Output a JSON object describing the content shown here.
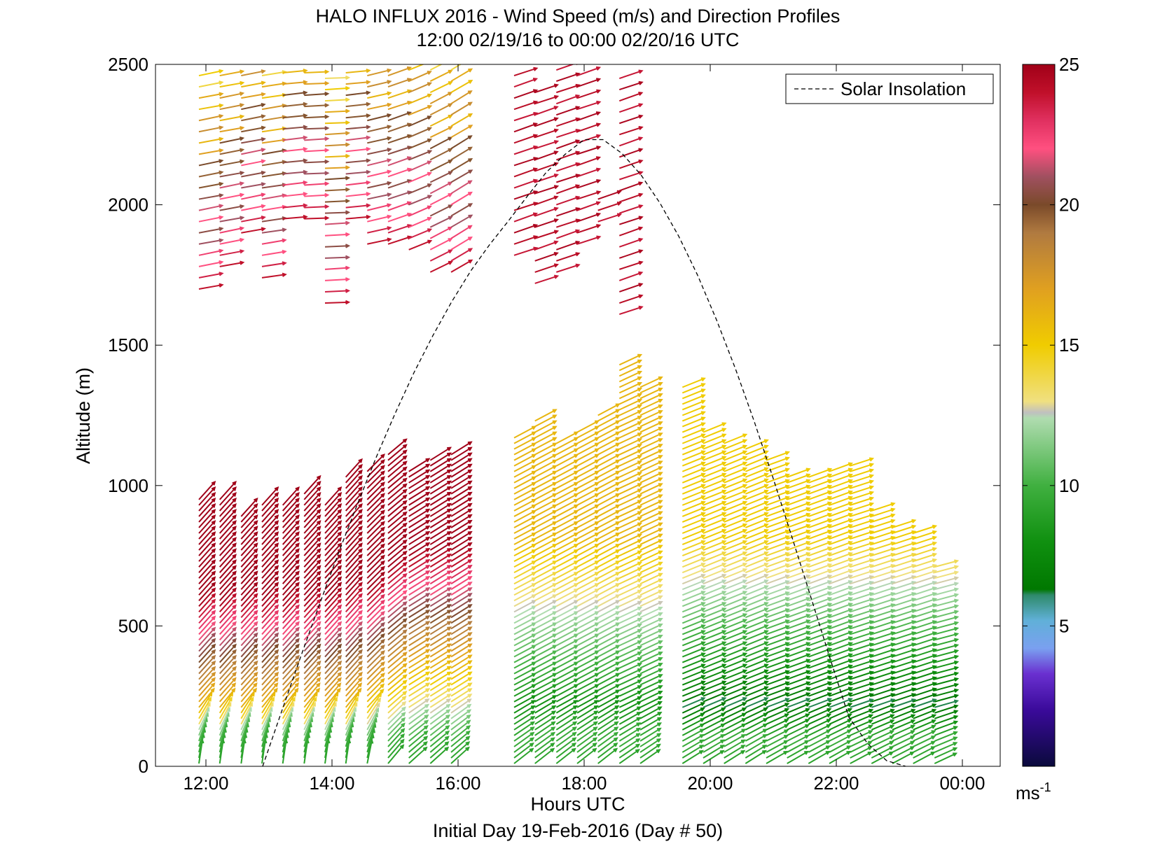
{
  "chart_data": {
    "type": "quiver",
    "title": "HALO INFLUX 2016 - Wind Speed (m/s) and Direction Profiles",
    "subtitle": "12:00 02/19/16 to 00:00 02/20/16  UTC",
    "xlabel": "Hours UTC",
    "footer": "Initial Day 19-Feb-2016 (Day # 50)",
    "ylabel": "Altitude (m)",
    "xlim": [
      11.2,
      24.6
    ],
    "ylim": [
      0,
      2500
    ],
    "x_ticks": [
      12,
      14,
      16,
      18,
      20,
      22,
      24
    ],
    "x_tick_labels": [
      "12:00",
      "14:00",
      "16:00",
      "18:00",
      "20:00",
      "22:00",
      "00:00"
    ],
    "y_ticks": [
      0,
      500,
      1000,
      1500,
      2000,
      2500
    ],
    "y_tick_labels": [
      "0",
      "500",
      "1000",
      "1500",
      "2000",
      "2500"
    ],
    "colorbar": {
      "range": [
        0,
        25
      ],
      "ticks": [
        5,
        10,
        15,
        20,
        25
      ],
      "tick_labels": [
        "5",
        "10",
        "15",
        "20",
        "25"
      ],
      "unit_label": "ms",
      "unit_exponent": "-1",
      "colors": [
        {
          "v": 0,
          "c": "#0a0a3c"
        },
        {
          "v": 2,
          "c": "#3a0a9a"
        },
        {
          "v": 3.3,
          "c": "#6a30d0"
        },
        {
          "v": 4.2,
          "c": "#7aa0f0"
        },
        {
          "v": 5.2,
          "c": "#60b0d8"
        },
        {
          "v": 6.1,
          "c": "#2e8a6a"
        },
        {
          "v": 6.3,
          "c": "#007800"
        },
        {
          "v": 8,
          "c": "#109010"
        },
        {
          "v": 10,
          "c": "#40b040"
        },
        {
          "v": 12.4,
          "c": "#b0dcb0"
        },
        {
          "v": 12.6,
          "c": "#c0c0c0"
        },
        {
          "v": 13,
          "c": "#f0e080"
        },
        {
          "v": 15,
          "c": "#f0cc00"
        },
        {
          "v": 17,
          "c": "#e0a020"
        },
        {
          "v": 19,
          "c": "#b07a40"
        },
        {
          "v": 20,
          "c": "#7a4a2a"
        },
        {
          "v": 21,
          "c": "#a05060"
        },
        {
          "v": 22,
          "c": "#ff5080"
        },
        {
          "v": 23,
          "c": "#e03060"
        },
        {
          "v": 24,
          "c": "#c0102a"
        },
        {
          "v": 25,
          "c": "#a00018"
        }
      ]
    },
    "legend": {
      "label": "Solar Insolation",
      "position": "top-right",
      "style": "dashed",
      "color": "#000000"
    },
    "solar_insolation": {
      "x": [
        12.9,
        13.2,
        13.5,
        13.8,
        14.1,
        14.4,
        14.7,
        15.0,
        15.3,
        15.6,
        15.9,
        16.2,
        16.5,
        16.8,
        17.1,
        17.4,
        17.7,
        18.0,
        18.3,
        18.6,
        18.9,
        19.2,
        19.5,
        19.8,
        20.1,
        20.4,
        20.7,
        21.0,
        21.3,
        21.6,
        21.9,
        22.2,
        22.5,
        22.8,
        23.1
      ],
      "y": [
        0,
        195,
        388,
        576,
        758,
        932,
        1100,
        1256,
        1402,
        1534,
        1655,
        1764,
        1858,
        1943,
        2031,
        2116,
        2180,
        2232,
        2232,
        2183,
        2107,
        2007,
        1888,
        1749,
        1590,
        1416,
        1227,
        1025,
        814,
        600,
        385,
        175,
        80,
        20,
        0
      ]
    },
    "profiles": [
      {
        "t": 12.0,
        "low": [
          0,
          950
        ],
        "up": [
          1700,
          2480
        ],
        "lowTop": 28,
        "lowLand": 20,
        "lowDir": 48,
        "upDir": 10
      },
      {
        "t": 12.33,
        "low": [
          0,
          950
        ],
        "up": [
          1780,
          2480
        ],
        "lowTop": 28,
        "lowLand": 20,
        "lowDir": 48,
        "upDir": 10
      },
      {
        "t": 12.67,
        "low": [
          0,
          900
        ],
        "up": [
          1900,
          2480
        ],
        "lowTop": 28,
        "lowLand": 20,
        "lowDir": 48,
        "upDir": 10
      },
      {
        "t": 13.0,
        "low": [
          0,
          940
        ],
        "up": [
          1740,
          2480
        ],
        "lowTop": 28,
        "lowLand": 20,
        "lowDir": 48,
        "upDir": 8
      },
      {
        "t": 13.33,
        "low": [
          0,
          940
        ],
        "up": [
          1950,
          2480
        ],
        "lowTop": 28,
        "lowLand": 20,
        "lowDir": 48,
        "upDir": 5
      },
      {
        "t": 13.67,
        "low": [
          0,
          970
        ],
        "up": [
          1950,
          2480
        ],
        "lowTop": 28,
        "lowLand": 20,
        "lowDir": 48,
        "upDir": 2
      },
      {
        "t": 14.0,
        "low": [
          0,
          940
        ],
        "up": [
          1650,
          2480
        ],
        "lowTop": 28,
        "lowLand": 20,
        "lowDir": 48,
        "upDir": 2
      },
      {
        "t": 14.33,
        "low": [
          0,
          1040
        ],
        "up": [
          1950,
          2480
        ],
        "lowTop": 27,
        "lowLand": 20,
        "lowDir": 48,
        "upDir": 5
      },
      {
        "t": 14.67,
        "low": [
          0,
          1060
        ],
        "up": [
          1860,
          2480
        ],
        "lowTop": 27,
        "lowLand": 19,
        "lowDir": 45,
        "upDir": 12
      },
      {
        "t": 15.0,
        "low": [
          0,
          1120
        ],
        "up": [
          1860,
          2480
        ],
        "lowTop": 25,
        "lowLand": 18,
        "lowDir": 40,
        "upDir": 18
      },
      {
        "t": 15.33,
        "low": [
          0,
          1060
        ],
        "up": [
          1840,
          2480
        ],
        "lowTop": 24,
        "lowLand": 17,
        "lowDir": 32,
        "upDir": 22
      },
      {
        "t": 15.67,
        "low": [
          0,
          1100
        ],
        "up": [
          1760,
          2480
        ],
        "lowTop": 24,
        "lowLand": 17,
        "lowDir": 32,
        "upDir": 26
      },
      {
        "t": 16.0,
        "low": [
          0,
          1120
        ],
        "up": [
          1760,
          2480
        ],
        "lowTop": 24,
        "lowLand": 17,
        "lowDir": 32,
        "upDir": 30
      },
      {
        "t": 17.0,
        "low": [
          0,
          1180
        ],
        "up": [
          1820,
          2480
        ],
        "lowTop": 14,
        "lowLand": 12,
        "lowDir": 28,
        "upDir": 18
      },
      {
        "t": 17.33,
        "low": [
          0,
          1230
        ],
        "up": [
          1720,
          2420
        ],
        "lowTop": 14,
        "lowLand": 12,
        "lowDir": 28,
        "upDir": 18
      },
      {
        "t": 17.67,
        "low": [
          0,
          1150
        ],
        "up": [
          1760,
          2480
        ],
        "lowTop": 14,
        "lowLand": 12,
        "lowDir": 28,
        "upDir": 18
      },
      {
        "t": 18.0,
        "low": [
          0,
          1200
        ],
        "up": [
          1860,
          2480
        ],
        "lowTop": 14,
        "lowLand": 12,
        "lowDir": 28,
        "upDir": 18
      },
      {
        "t": 18.33,
        "low": [
          0,
          1260
        ],
        "up": [
          1940,
          2040
        ],
        "lowTop": 14,
        "lowLand": 12,
        "lowDir": 28,
        "upDir": 18
      },
      {
        "t": 18.67,
        "low": [
          0,
          1440
        ],
        "up": [
          1610,
          2480
        ],
        "lowTop": 14,
        "lowLand": 12,
        "lowDir": 25,
        "upDir": 18
      },
      {
        "t": 19.0,
        "low": [
          0,
          1360
        ],
        "up": null,
        "lowTop": 14,
        "lowLand": 12,
        "lowDir": 25,
        "upDir": 18
      },
      {
        "t": 19.67,
        "low": [
          0,
          1350
        ],
        "up": null,
        "lowTop": 13,
        "lowLand": 10,
        "lowDir": 22,
        "upDir": 18
      },
      {
        "t": 20.0,
        "low": [
          0,
          1200
        ],
        "up": null,
        "lowTop": 13,
        "lowLand": 10,
        "lowDir": 22,
        "upDir": 18
      },
      {
        "t": 20.33,
        "low": [
          0,
          1160
        ],
        "up": null,
        "lowTop": 13,
        "lowLand": 10,
        "lowDir": 22,
        "upDir": 18
      },
      {
        "t": 20.67,
        "low": [
          0,
          1140
        ],
        "up": null,
        "lowTop": 13,
        "lowLand": 10,
        "lowDir": 22,
        "upDir": 18
      },
      {
        "t": 21.0,
        "low": [
          0,
          1100
        ],
        "up": null,
        "lowTop": 13,
        "lowLand": 10,
        "lowDir": 20,
        "upDir": 18
      },
      {
        "t": 21.33,
        "low": [
          0,
          1040
        ],
        "up": null,
        "lowTop": 13,
        "lowLand": 10,
        "lowDir": 20,
        "upDir": 18
      },
      {
        "t": 21.67,
        "low": [
          0,
          1040
        ],
        "up": null,
        "lowTop": 13,
        "lowLand": 10,
        "lowDir": 20,
        "upDir": 18
      },
      {
        "t": 22.0,
        "low": [
          0,
          1050
        ],
        "up": null,
        "lowTop": 13,
        "lowLand": 10,
        "lowDir": 20,
        "upDir": 18
      },
      {
        "t": 22.33,
        "low": [
          0,
          1080
        ],
        "up": null,
        "lowTop": 13,
        "lowLand": 10,
        "lowDir": 18,
        "upDir": 18
      },
      {
        "t": 22.67,
        "low": [
          0,
          920
        ],
        "up": null,
        "lowTop": 13,
        "lowLand": 10,
        "lowDir": 18,
        "upDir": 18
      },
      {
        "t": 23.0,
        "low": [
          0,
          850
        ],
        "up": null,
        "lowTop": 13,
        "lowLand": 10,
        "lowDir": 18,
        "upDir": 18
      },
      {
        "t": 23.33,
        "low": [
          0,
          830
        ],
        "up": null,
        "lowTop": 13,
        "lowLand": 10,
        "lowDir": 18,
        "upDir": 18
      },
      {
        "t": 23.67,
        "low": [
          0,
          720
        ],
        "up": null,
        "lowTop": 13,
        "lowLand": 10,
        "lowDir": 15,
        "upDir": 18
      }
    ]
  }
}
